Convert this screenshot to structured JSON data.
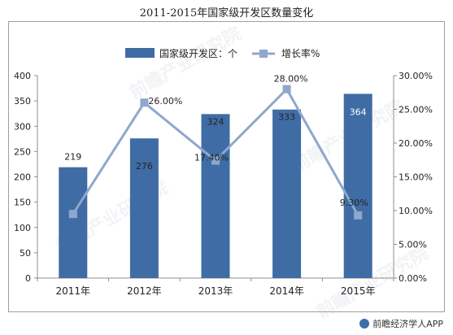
{
  "chart_data": {
    "type": "bar+line",
    "title": "2011-2015年国家级开发区数量变化",
    "categories": [
      "2011年",
      "2012年",
      "2013年",
      "2014年",
      "2015年"
    ],
    "series": [
      {
        "name": "国家级开发区：个",
        "type": "bar",
        "axis": "left",
        "values": [
          219,
          276,
          324,
          333,
          364
        ],
        "labels": [
          "219",
          "276",
          "324",
          "333",
          "364"
        ],
        "color": "#3F6CA5"
      },
      {
        "name": "增长率%",
        "type": "line",
        "axis": "right",
        "values": [
          9.5,
          26.0,
          17.4,
          28.0,
          9.3
        ],
        "labels": [
          "",
          "26.00%",
          "17.40%",
          "28.00%",
          "9.30%"
        ],
        "color": "#8FA7CC"
      }
    ],
    "y_left": {
      "min": 0,
      "max": 400,
      "ticks": [
        "0",
        "50",
        "100",
        "150",
        "200",
        "250",
        "300",
        "350",
        "400"
      ]
    },
    "y_right": {
      "min": 0,
      "max": 30,
      "ticks": [
        "0.00%",
        "5.00%",
        "10.00%",
        "15.00%",
        "20.00%",
        "25.00%",
        "30.00%"
      ]
    },
    "legend_position": "top",
    "grid": false
  },
  "watermark": {
    "text": "前瞻产业研究院"
  },
  "footer": {
    "brand": "前瞻经济学人APP"
  }
}
